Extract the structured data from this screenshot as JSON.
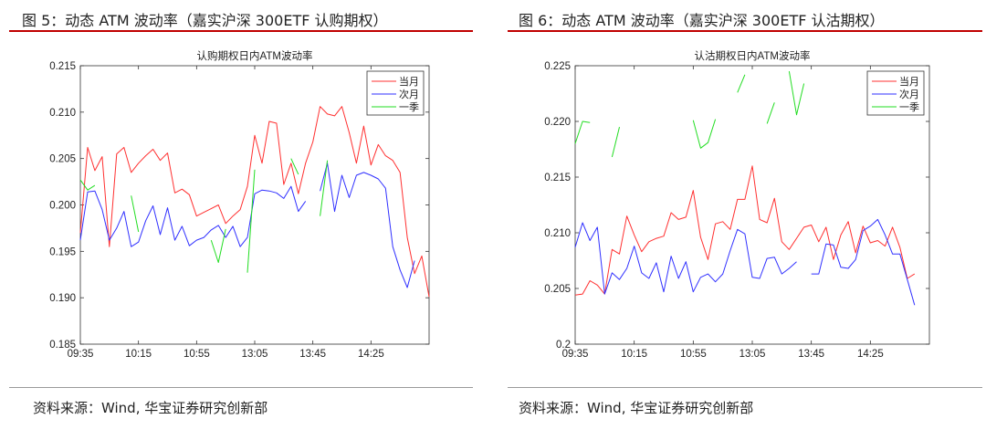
{
  "figures": [
    {
      "caption": "图 5：动态 ATM 波动率（嘉实沪深 300ETF 认购期权）",
      "source": "资料来源：Wind, 华宝证券研究创新部"
    },
    {
      "caption": "图 6：动态 ATM 波动率（嘉实沪深 300ETF 认沽期权）",
      "source": "资料来源：Wind, 华宝证券研究创新部"
    }
  ],
  "colors": {
    "accent_rule": "#c00000",
    "series_current": "#ff3030",
    "series_next": "#3030ff",
    "series_quarter": "#22dd22"
  },
  "chart_data": [
    {
      "type": "line",
      "title": "认购期权日内ATM波动率",
      "xlabel": "",
      "ylabel": "",
      "x_ticks": [
        "09:35",
        "10:15",
        "10:55",
        "13:05",
        "13:45",
        "14:25"
      ],
      "x_tick_index": [
        0,
        8,
        16,
        24,
        32,
        40
      ],
      "x_range": [
        0,
        48
      ],
      "ylim": [
        0.185,
        0.215
      ],
      "y_ticks": [
        0.185,
        0.19,
        0.195,
        0.2,
        0.205,
        0.21,
        0.215
      ],
      "grid": false,
      "legend_position": "top-right",
      "series": [
        {
          "name": "当月",
          "values": [
            0.197,
            0.2062,
            0.2037,
            0.2052,
            0.1955,
            0.2055,
            0.2062,
            0.2035,
            0.2045,
            0.2053,
            0.206,
            0.2048,
            0.2056,
            0.2013,
            0.2017,
            0.2011,
            0.1988,
            0.1992,
            0.1996,
            0.2,
            0.198,
            0.1988,
            0.1995,
            0.202,
            0.2075,
            0.2045,
            0.209,
            0.2088,
            0.2022,
            0.2045,
            0.2012,
            0.2045,
            0.2068,
            0.2106,
            0.2098,
            0.2096,
            0.2106,
            0.2078,
            0.2045,
            0.2085,
            0.2043,
            0.2065,
            0.2053,
            0.2048,
            0.2035,
            0.1965,
            0.1926,
            0.1945,
            0.1901
          ]
        },
        {
          "name": "次月",
          "values": [
            0.1962,
            0.2014,
            0.2015,
            0.1995,
            0.1962,
            0.1975,
            0.1993,
            0.1955,
            0.196,
            0.1983,
            0.1999,
            0.1968,
            0.1997,
            0.1962,
            0.1977,
            0.1956,
            0.1962,
            0.1965,
            0.1973,
            0.1978,
            0.1965,
            0.1977,
            0.1955,
            0.1965,
            0.2012,
            0.2016,
            0.2015,
            0.2013,
            0.2007,
            0.202,
            0.1993,
            0.2004,
            null,
            0.2015,
            0.2045,
            0.1993,
            0.2032,
            0.2008,
            0.2032,
            0.2035,
            0.2032,
            0.2028,
            0.2018,
            0.1955,
            0.193,
            0.1911,
            0.194,
            null,
            null
          ]
        },
        {
          "name": "一季",
          "values": [
            0.2027,
            0.2016,
            0.2021,
            null,
            null,
            null,
            null,
            0.201,
            0.1971,
            null,
            null,
            null,
            null,
            null,
            null,
            null,
            null,
            null,
            0.1962,
            0.1938,
            0.1974,
            null,
            null,
            0.1927,
            0.2038,
            null,
            null,
            null,
            null,
            0.205,
            0.2033,
            null,
            null,
            0.1988,
            0.2048,
            null,
            null,
            null,
            null,
            null,
            null,
            null,
            null,
            null,
            null,
            null,
            null,
            null,
            null
          ]
        }
      ]
    },
    {
      "type": "line",
      "title": "认沽期权日内ATM波动率",
      "xlabel": "",
      "ylabel": "",
      "x_ticks": [
        "09:35",
        "10:15",
        "10:55",
        "13:05",
        "13:45",
        "14:25"
      ],
      "x_tick_index": [
        0,
        8,
        16,
        24,
        32,
        40
      ],
      "x_range": [
        0,
        48
      ],
      "ylim": [
        0.2,
        0.225
      ],
      "y_ticks": [
        0.2,
        0.205,
        0.21,
        0.215,
        0.22,
        0.225
      ],
      "grid": false,
      "legend_position": "top-right",
      "series": [
        {
          "name": "当月",
          "values": [
            0.2044,
            0.2045,
            0.2057,
            0.2053,
            0.2045,
            0.2085,
            0.2081,
            0.2115,
            0.2098,
            0.2083,
            0.2092,
            0.2095,
            0.2097,
            0.2118,
            0.2112,
            0.2114,
            0.2138,
            0.2096,
            0.2076,
            0.2108,
            0.211,
            0.2103,
            0.213,
            0.213,
            0.216,
            0.2112,
            0.2109,
            0.2131,
            0.2092,
            0.2085,
            0.2095,
            0.2105,
            0.2107,
            0.2092,
            0.2105,
            0.2076,
            0.2098,
            0.211,
            0.2082,
            0.2106,
            0.2091,
            0.2093,
            0.2088,
            0.2105,
            0.2087,
            0.2059,
            0.2063,
            null,
            null
          ]
        },
        {
          "name": "次月",
          "values": [
            0.2087,
            0.2109,
            0.2093,
            0.2105,
            0.2045,
            0.2064,
            0.2058,
            0.2068,
            0.2088,
            0.2064,
            0.2059,
            0.2073,
            0.2047,
            0.2079,
            0.2059,
            0.2074,
            0.2047,
            0.206,
            0.2063,
            0.2056,
            0.2063,
            0.2084,
            0.2103,
            0.2099,
            0.206,
            0.2059,
            0.2077,
            0.2078,
            0.2063,
            0.2068,
            0.2074,
            null,
            0.2063,
            0.2063,
            0.209,
            0.2089,
            0.2069,
            0.2068,
            0.2076,
            0.2102,
            0.2106,
            0.2112,
            0.2098,
            0.2081,
            0.2081,
            0.2058,
            0.2035,
            null,
            null
          ]
        },
        {
          "name": "一季",
          "values": [
            0.218,
            0.22,
            0.2199,
            null,
            null,
            0.2168,
            0.2195,
            null,
            null,
            null,
            null,
            null,
            null,
            null,
            null,
            null,
            0.2201,
            0.2176,
            0.2181,
            0.2202,
            null,
            null,
            0.2226,
            0.2242,
            null,
            null,
            0.2198,
            0.2217,
            null,
            0.2245,
            0.2206,
            0.2234,
            null,
            null,
            null,
            null,
            null,
            null,
            null,
            null,
            null,
            null,
            null,
            null,
            null,
            null,
            null,
            null,
            null
          ]
        }
      ]
    }
  ]
}
